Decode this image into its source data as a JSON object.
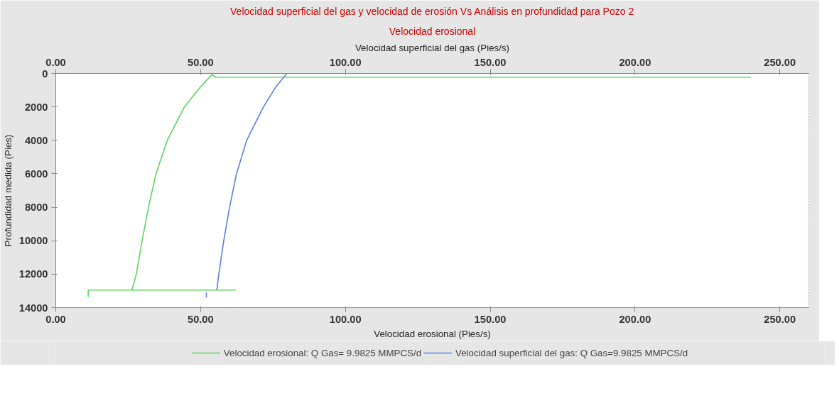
{
  "chart_data": {
    "type": "line",
    "title": "Velocidad superficial del gas y velocidad de erosión Vs Análisis en profundidad para Pozo 2",
    "subtitle": "Velocidad erosional",
    "xlabel": "Velocidad erosional (Pies/s)",
    "x2label": "Velocidad superficial del gas (Pies/s)",
    "ylabel": "Profundidad medida (Pies)",
    "xlim": [
      0,
      260
    ],
    "x2lim": [
      0,
      260
    ],
    "xticks": [
      {
        "value": 0,
        "label": "0.00"
      },
      {
        "value": 50,
        "label": "50.00"
      },
      {
        "value": 100,
        "label": "100.00"
      },
      {
        "value": 150,
        "label": "150.00"
      },
      {
        "value": 200,
        "label": "200.00"
      },
      {
        "value": 250,
        "label": "250.00"
      }
    ],
    "x2ticks": [
      {
        "value": 0,
        "label": "0.00"
      },
      {
        "value": 50,
        "label": "50.00"
      },
      {
        "value": 100,
        "label": "100.00"
      },
      {
        "value": 150,
        "label": "150.00"
      },
      {
        "value": 200,
        "label": "200.00"
      },
      {
        "value": 250,
        "label": "250.00"
      }
    ],
    "ylim": [
      14000,
      0
    ],
    "yticks": [
      0,
      2000,
      4000,
      6000,
      8000,
      10000,
      12000,
      14000
    ],
    "grid": false,
    "legend": "bottom",
    "line_style": "solid",
    "series": [
      {
        "name": "Velocidad erosional: Q Gas= 9.9825 MMPCS/d",
        "color": "#5fd35f",
        "x": [
          240,
          55,
          54,
          50,
          44.4,
          38.5,
          34.6,
          32,
          29.8,
          27.8,
          26.3,
          62,
          11.2,
          11.2
        ],
        "values": [
          220,
          220,
          50,
          800,
          2000,
          4000,
          6000,
          8000,
          10000,
          12000,
          12950,
          12950,
          12950,
          13350
        ]
      },
      {
        "name": "Velocidad superficial del gas: Q Gas=9.9825 MMPCS/d",
        "color": "#5b7fe0",
        "x": [
          79.8,
          76,
          71.7,
          65.9,
          62.4,
          60,
          58,
          56.3,
          55.6,
          null,
          52,
          52
        ],
        "values": [
          0,
          800,
          2000,
          4000,
          6000,
          8000,
          10000,
          12000,
          12950,
          null,
          13100,
          13400
        ]
      }
    ]
  }
}
